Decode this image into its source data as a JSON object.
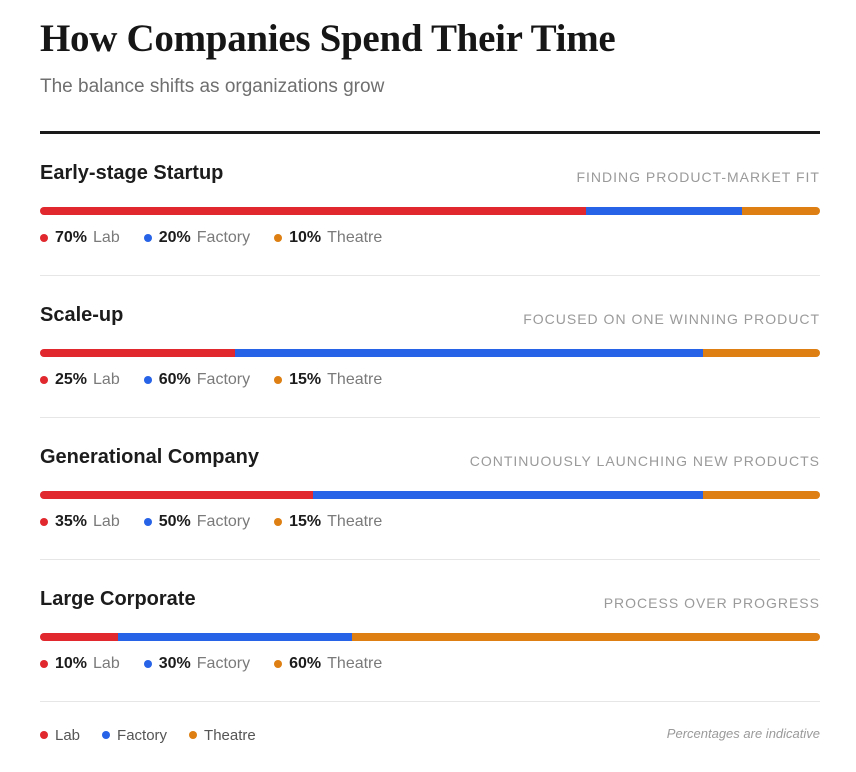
{
  "title": "How Companies Spend Their Time",
  "subtitle": "The balance shifts as organizations grow",
  "colors": {
    "lab": "#e0282e",
    "factory": "#2763e6",
    "theatre": "#dd7f12"
  },
  "chart_data": {
    "type": "bar",
    "orientation": "horizontal-stacked",
    "title": "How Companies Spend Their Time",
    "subtitle": "The balance shifts as organizations grow",
    "categories": [
      "Early-stage Startup",
      "Scale-up",
      "Generational Company",
      "Large Corporate"
    ],
    "descriptions": [
      "FINDING PRODUCT-MARKET FIT",
      "FOCUSED ON ONE WINNING PRODUCT",
      "CONTINUOUSLY LAUNCHING NEW PRODUCTS",
      "PROCESS OVER PROGRESS"
    ],
    "series": [
      {
        "name": "Lab",
        "values": [
          70,
          25,
          35,
          10
        ]
      },
      {
        "name": "Factory",
        "values": [
          20,
          60,
          50,
          30
        ]
      },
      {
        "name": "Theatre",
        "values": [
          10,
          15,
          15,
          60
        ]
      }
    ],
    "unit": "%",
    "xlim": [
      0,
      100
    ],
    "legend": "bottom-left",
    "note": "Percentages are indicative"
  },
  "legend": {
    "items": [
      "Lab",
      "Factory",
      "Theatre"
    ]
  },
  "footer": {
    "note": "Percentages are indicative"
  }
}
